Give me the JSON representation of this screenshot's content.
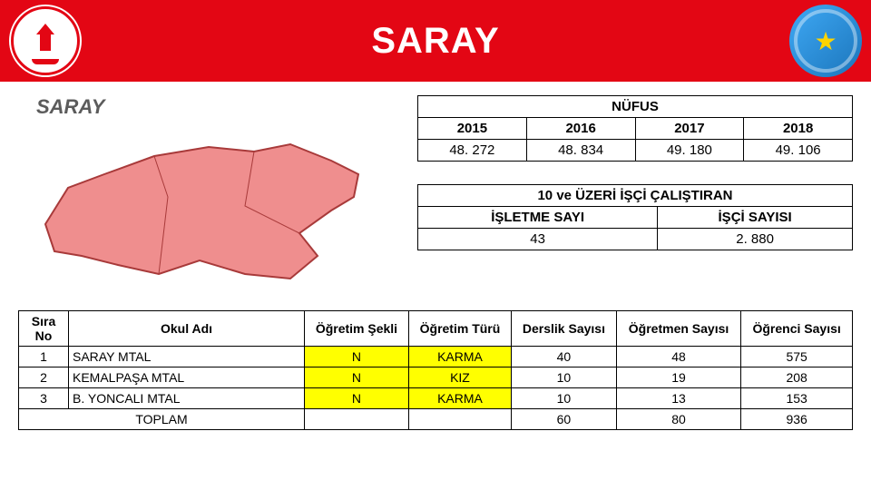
{
  "header": {
    "title": "SARAY"
  },
  "map": {
    "label": "SARAY",
    "fill": "#ef8e8e",
    "stroke": "#a83a3a"
  },
  "nufus": {
    "title": "NÜFUS",
    "years": [
      "2015",
      "2016",
      "2017",
      "2018"
    ],
    "values": [
      "48. 272",
      "48. 834",
      "49. 180",
      "49. 106"
    ]
  },
  "workers": {
    "title": "10 ve ÜZERİ İŞÇİ ÇALIŞTIRAN",
    "cols": [
      "İŞLETME SAYI",
      "İŞÇİ SAYISI"
    ],
    "vals": [
      "43",
      "2. 880"
    ]
  },
  "schools": {
    "columns": [
      "Sıra No",
      "Okul Adı",
      "Öğretim Şekli",
      "Öğretim Türü",
      "Derslik Sayısı",
      "Öğretmen Sayısı",
      "Öğrenci Sayısı"
    ],
    "rows": [
      [
        "1",
        "SARAY MTAL",
        "N",
        "KARMA",
        "40",
        "48",
        "575"
      ],
      [
        "2",
        "KEMALPAŞA MTAL",
        "N",
        "KIZ",
        "10",
        "19",
        "208"
      ],
      [
        "3",
        "B. YONCALI MTAL",
        "N",
        "KARMA",
        "10",
        "13",
        "153"
      ]
    ],
    "total_label": "TOPLAM",
    "totals": [
      "60",
      "80",
      "936"
    ],
    "highlight_cols": [
      2,
      3
    ]
  }
}
